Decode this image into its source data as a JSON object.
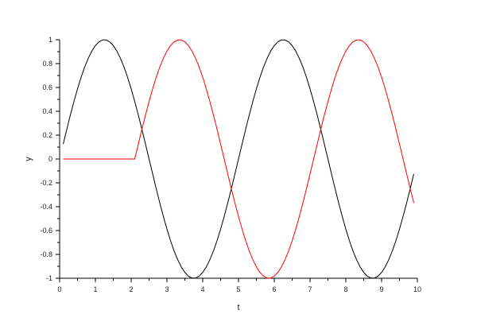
{
  "chart_data": {
    "type": "line",
    "title": "",
    "xlabel": "t",
    "ylabel": "y",
    "xlim": [
      0,
      10
    ],
    "ylim": [
      -1,
      1
    ],
    "grid": false,
    "legend": "none",
    "x_ticks": [
      "0",
      "1",
      "2",
      "3",
      "4",
      "5",
      "6",
      "7",
      "8",
      "9",
      "10"
    ],
    "y_ticks": [
      "-1",
      "-0.8",
      "-0.6",
      "-0.4",
      "-0.2",
      "0",
      "0.2",
      "0.4",
      "0.6",
      "0.8",
      "1"
    ],
    "x": [
      0.1,
      0.2,
      0.3,
      0.4,
      0.5,
      0.6,
      0.7,
      0.8,
      0.9,
      1.0,
      1.1,
      1.2,
      1.3,
      1.4,
      1.5,
      1.6,
      1.7,
      1.8,
      1.9,
      2.0,
      2.1,
      2.2,
      2.3,
      2.4,
      2.5,
      2.6,
      2.7,
      2.8,
      2.9,
      3.0,
      3.1,
      3.2,
      3.3,
      3.4,
      3.5,
      3.6,
      3.7,
      3.8,
      3.9,
      4.0,
      4.1,
      4.2,
      4.3,
      4.4,
      4.5,
      4.6,
      4.7,
      4.8,
      4.9,
      5.0,
      5.1,
      5.2,
      5.3,
      5.4,
      5.5,
      5.6,
      5.7,
      5.8,
      5.9,
      6.0,
      6.1,
      6.2,
      6.3,
      6.4,
      6.5,
      6.6,
      6.7,
      6.8,
      6.9,
      7.0,
      7.1,
      7.2,
      7.3,
      7.4,
      7.5,
      7.6,
      7.7,
      7.8,
      7.9,
      8.0,
      8.1,
      8.2,
      8.3,
      8.4,
      8.5,
      8.6,
      8.7,
      8.8,
      8.9,
      9.0,
      9.1,
      9.2,
      9.3,
      9.4,
      9.5,
      9.6,
      9.7,
      9.8,
      9.9
    ],
    "series": [
      {
        "color": "#000000",
        "values": [
          0.125,
          0.249,
          0.368,
          0.482,
          0.588,
          0.685,
          0.771,
          0.844,
          0.905,
          0.951,
          0.982,
          0.998,
          0.998,
          0.982,
          0.951,
          0.905,
          0.844,
          0.771,
          0.685,
          0.588,
          0.482,
          0.368,
          0.249,
          0.125,
          0,
          -0.125,
          -0.249,
          -0.368,
          -0.482,
          -0.588,
          -0.685,
          -0.771,
          -0.844,
          -0.905,
          -0.951,
          -0.982,
          -0.998,
          -0.998,
          -0.982,
          -0.951,
          -0.905,
          -0.844,
          -0.771,
          -0.685,
          -0.588,
          -0.482,
          -0.368,
          -0.249,
          -0.125,
          0,
          0.125,
          0.249,
          0.368,
          0.482,
          0.588,
          0.685,
          0.771,
          0.844,
          0.905,
          0.951,
          0.982,
          0.998,
          0.998,
          0.982,
          0.951,
          0.905,
          0.844,
          0.771,
          0.685,
          0.588,
          0.482,
          0.368,
          0.249,
          0.125,
          0,
          -0.125,
          -0.249,
          -0.368,
          -0.482,
          -0.588,
          -0.685,
          -0.771,
          -0.844,
          -0.905,
          -0.951,
          -0.982,
          -0.998,
          -0.998,
          -0.982,
          -0.951,
          -0.905,
          -0.844,
          -0.771,
          -0.685,
          -0.588,
          -0.482,
          -0.368,
          -0.249,
          -0.125
        ]
      },
      {
        "color": "#ff0000",
        "values": [
          0,
          0,
          0,
          0,
          0,
          0,
          0,
          0,
          0,
          0,
          0,
          0,
          0,
          0,
          0,
          0,
          0,
          0,
          0,
          0,
          0,
          0.125,
          0.249,
          0.368,
          0.482,
          0.588,
          0.685,
          0.771,
          0.844,
          0.905,
          0.951,
          0.982,
          0.998,
          0.998,
          0.982,
          0.951,
          0.905,
          0.844,
          0.771,
          0.685,
          0.588,
          0.482,
          0.368,
          0.249,
          0.125,
          0,
          -0.125,
          -0.249,
          -0.368,
          -0.482,
          -0.588,
          -0.685,
          -0.771,
          -0.844,
          -0.905,
          -0.951,
          -0.982,
          -0.998,
          -0.998,
          -0.982,
          -0.951,
          -0.905,
          -0.844,
          -0.771,
          -0.685,
          -0.588,
          -0.482,
          -0.368,
          -0.249,
          -0.125,
          0,
          0.125,
          0.249,
          0.368,
          0.482,
          0.588,
          0.685,
          0.771,
          0.844,
          0.905,
          0.951,
          0.982,
          0.998,
          0.998,
          0.982,
          0.951,
          0.905,
          0.844,
          0.771,
          0.685,
          0.588,
          0.482,
          0.368,
          0.249,
          0.125,
          0,
          -0.125,
          -0.249,
          -0.368
        ]
      }
    ]
  }
}
